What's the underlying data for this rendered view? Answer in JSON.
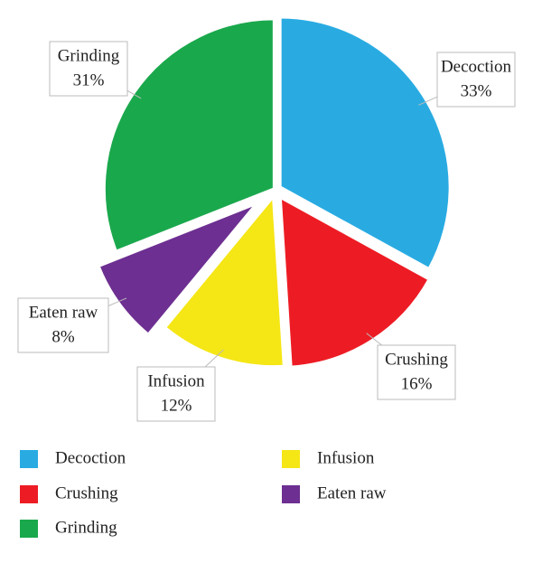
{
  "chart_data": {
    "type": "pie",
    "categories": [
      "Decoction",
      "Crushing",
      "Infusion",
      "Eaten raw",
      "Grinding"
    ],
    "values": [
      33,
      16,
      12,
      8,
      31
    ],
    "value_labels": [
      "33%",
      "16%",
      "12%",
      "8%",
      "31%"
    ],
    "colors": [
      "#29abe2",
      "#ed1c24",
      "#f5e616",
      "#6d2f91",
      "#1aa84c"
    ]
  }
}
